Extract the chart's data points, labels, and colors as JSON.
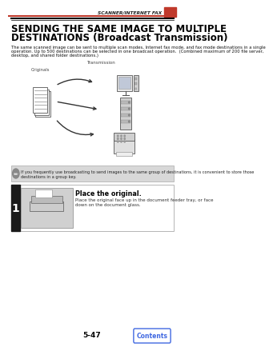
{
  "header_text": "SCANNER/INTERNET FAX",
  "header_bar_color": "#c0392b",
  "title_line1": "SENDING THE SAME IMAGE TO MULTIPLE",
  "title_line2": "DESTINATIONS (Broadcast Transmission)",
  "body_text1": "The same scanned image can be sent to multiple scan modes, Internet fax mode, and fax mode destinations in a single",
  "body_text2": "operation. Up to 500 destinations can be selected in one broadcast operation.  (Combined maximum of 200 file server,",
  "body_text3": "desktop, and shared folder destinations.)",
  "transmission_label": "Transmission",
  "originals_label": "Originals",
  "note_text1": "If you frequently use broadcasting to send images to the same group of destinations, it is convenient to store those",
  "note_text2": "destinations in a group key.",
  "step_number": "1",
  "step_title": "Place the original.",
  "step_body1": "Place the original face up in the document feeder tray, or face",
  "step_body2": "down on the document glass.",
  "page_number": "5-47",
  "contents_button_text": "Contents",
  "contents_button_color": "#4169e1",
  "bg_color": "#ffffff",
  "title_color": "#000000",
  "note_bg_color": "#d8d8d8",
  "step_bar_color": "#1a1a1a",
  "line_color": "#000000"
}
